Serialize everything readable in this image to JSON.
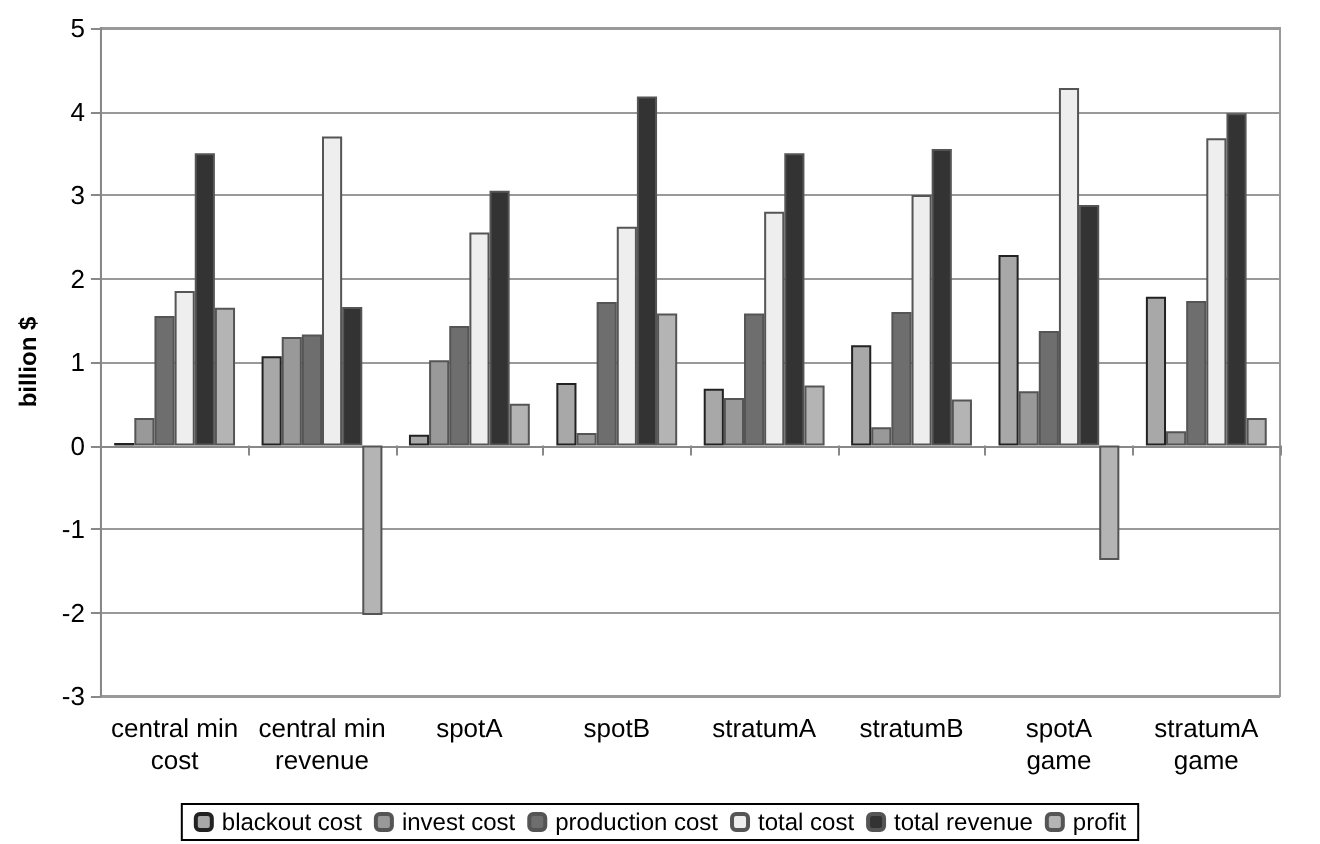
{
  "chart_data": {
    "type": "bar",
    "ylabel": "billion $",
    "categories": [
      "central min\ncost",
      "central min\nrevenue",
      "spotA",
      "spotB",
      "stratumA",
      "stratumB",
      "spotA\ngame",
      "stratumA\ngame"
    ],
    "series": [
      {
        "name": "blackout cost",
        "color": "#a8a8a8",
        "values": [
          0.03,
          1.07,
          0.13,
          0.75,
          0.68,
          1.2,
          2.28,
          1.78
        ]
      },
      {
        "name": "invest cost",
        "color": "#999999",
        "values": [
          0.33,
          1.3,
          1.02,
          0.15,
          0.57,
          0.22,
          0.65,
          0.17
        ]
      },
      {
        "name": "production cost",
        "color": "#6e6e6e",
        "values": [
          1.55,
          1.33,
          1.43,
          1.72,
          1.58,
          1.6,
          1.37,
          1.73
        ]
      },
      {
        "name": "total cost",
        "color": "#eeeeee",
        "values": [
          1.85,
          3.7,
          2.55,
          2.62,
          2.8,
          3.0,
          4.28,
          3.68
        ]
      },
      {
        "name": "total revenue",
        "color": "#333333",
        "values": [
          3.5,
          1.66,
          3.05,
          4.18,
          3.5,
          3.55,
          2.88,
          3.98
        ]
      },
      {
        "name": "profit",
        "color": "#b4b4b4",
        "values": [
          1.65,
          -2.03,
          0.5,
          1.58,
          0.72,
          0.55,
          -1.37,
          0.33
        ]
      }
    ],
    "ylim": [
      -3,
      5
    ],
    "yticks": [
      -3,
      -2,
      -1,
      0,
      1,
      2,
      3,
      4,
      5
    ],
    "grid": "y",
    "legend": "bottom"
  }
}
